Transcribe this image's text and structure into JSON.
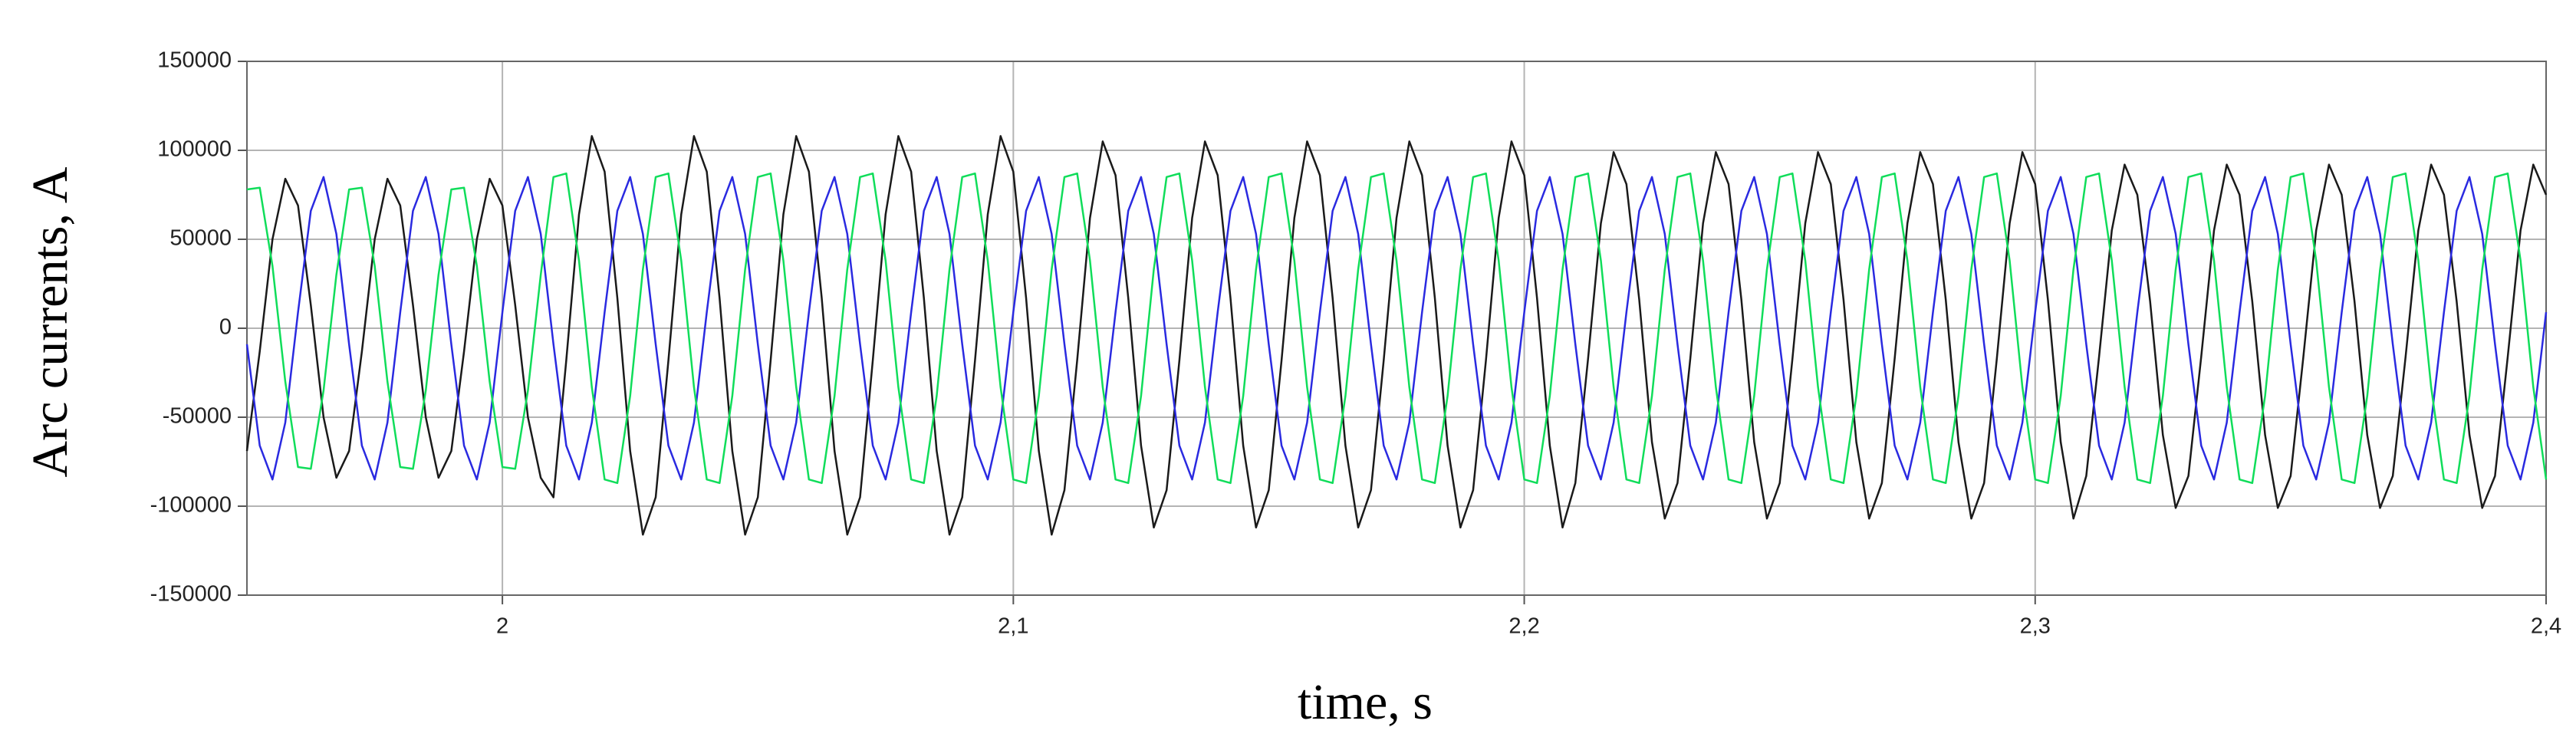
{
  "chart_data": {
    "type": "line",
    "xlabel": "time, s",
    "ylabel": "Arc currents, A",
    "xlim": [
      1.95,
      2.4
    ],
    "ylim": [
      -150000,
      150000
    ],
    "xticks": [
      2,
      {
        "value": 2.1,
        "label": "2,1"
      },
      {
        "value": 2.2,
        "label": "2,2"
      },
      {
        "value": 2.3,
        "label": "2,3"
      },
      {
        "value": 2.4,
        "label": "2,4"
      }
    ],
    "yticks": [
      -150000,
      -100000,
      -50000,
      0,
      50000,
      100000,
      150000
    ],
    "grid": true,
    "x": [
      1.95,
      1.9525,
      1.955,
      1.9575,
      1.96,
      1.9625,
      1.965,
      1.9675,
      1.97,
      1.9725,
      1.975,
      1.9775,
      1.98,
      1.9825,
      1.985,
      1.9875,
      1.99,
      1.9925,
      1.995,
      1.9975,
      2,
      2.0025,
      2.005,
      2.0075,
      2.01,
      2.0125,
      2.015,
      2.0175,
      2.02,
      2.0225,
      2.025,
      2.0275,
      2.03,
      2.0325,
      2.035,
      2.0375,
      2.04,
      2.0425,
      2.045,
      2.0475,
      2.05,
      2.0525,
      2.055,
      2.0575,
      2.06,
      2.0625,
      2.065,
      2.0675,
      2.07,
      2.0725,
      2.075,
      2.0775,
      2.08,
      2.0825,
      2.085,
      2.0875,
      2.09,
      2.0925,
      2.095,
      2.0975,
      2.1,
      2.1025,
      2.105,
      2.1075,
      2.11,
      2.1125,
      2.115,
      2.1175,
      2.12,
      2.1225,
      2.125,
      2.1275,
      2.13,
      2.1325,
      2.135,
      2.1375,
      2.14,
      2.1425,
      2.145,
      2.1475,
      2.15,
      2.1525,
      2.155,
      2.1575,
      2.16,
      2.1625,
      2.165,
      2.1675,
      2.17,
      2.1725,
      2.175,
      2.1775,
      2.18,
      2.1825,
      2.185,
      2.1875,
      2.19,
      2.1925,
      2.195,
      2.1975,
      2.2,
      2.2025,
      2.205,
      2.2075,
      2.21,
      2.2125,
      2.215,
      2.2175,
      2.22,
      2.2225,
      2.225,
      2.2275,
      2.23,
      2.2325,
      2.235,
      2.2375,
      2.24,
      2.2425,
      2.245,
      2.2475,
      2.25,
      2.2525,
      2.255,
      2.2575,
      2.26,
      2.2625,
      2.265,
      2.2675,
      2.27,
      2.2725,
      2.275,
      2.2775,
      2.28,
      2.2825,
      2.285,
      2.2875,
      2.29,
      2.2925,
      2.295,
      2.2975,
      2.3,
      2.3025,
      2.305,
      2.3075,
      2.31,
      2.3125,
      2.315,
      2.3175,
      2.32,
      2.3225,
      2.325,
      2.3275,
      2.33,
      2.3325,
      2.335,
      2.3375,
      2.34,
      2.3425,
      2.345,
      2.3475,
      2.35,
      2.3525,
      2.355,
      2.3575,
      2.36,
      2.3625,
      2.365,
      2.3675,
      2.37,
      2.3725,
      2.375,
      2.3775,
      2.38,
      2.3825,
      2.385,
      2.3875,
      2.39,
      2.3925,
      2.395,
      2.3975,
      2.4
    ],
    "series": [
      {
        "color": "#1a1a1a",
        "values": [
          -69000,
          -13000,
          50000,
          84000,
          69000,
          13000,
          -50000,
          -84000,
          -69000,
          -13000,
          50000,
          84000,
          69000,
          13000,
          -50000,
          -84000,
          -69000,
          -13000,
          50000,
          84000,
          69000,
          13000,
          -50000,
          -84000,
          -95000,
          -18000,
          64000,
          108000,
          88000,
          17000,
          -69000,
          -116000,
          -95000,
          -18000,
          64000,
          108000,
          88000,
          17000,
          -69000,
          -116000,
          -95000,
          -18000,
          64000,
          108000,
          88000,
          17000,
          -69000,
          -116000,
          -95000,
          -18000,
          64000,
          108000,
          88000,
          17000,
          -69000,
          -116000,
          -95000,
          -18000,
          64000,
          108000,
          88000,
          17000,
          -69000,
          -116000,
          -91000,
          -18000,
          62000,
          105000,
          86000,
          17000,
          -66000,
          -112000,
          -91000,
          -18000,
          62000,
          105000,
          86000,
          17000,
          -66000,
          -112000,
          -91000,
          -18000,
          62000,
          105000,
          86000,
          17000,
          -66000,
          -112000,
          -91000,
          -18000,
          62000,
          105000,
          86000,
          17000,
          -66000,
          -112000,
          -91000,
          -18000,
          62000,
          105000,
          86000,
          17000,
          -66000,
          -112000,
          -87000,
          -17000,
          59000,
          99000,
          81000,
          16000,
          -64000,
          -107000,
          -87000,
          -17000,
          59000,
          99000,
          81000,
          16000,
          -64000,
          -107000,
          -87000,
          -17000,
          59000,
          99000,
          81000,
          16000,
          -64000,
          -107000,
          -87000,
          -17000,
          59000,
          99000,
          81000,
          16000,
          -64000,
          -107000,
          -87000,
          -17000,
          59000,
          99000,
          81000,
          16000,
          -64000,
          -107000,
          -83000,
          -16000,
          55000,
          92000,
          75000,
          15000,
          -60000,
          -101000,
          -83000,
          -16000,
          55000,
          92000,
          75000,
          15000,
          -60000,
          -101000,
          -83000,
          -16000,
          55000,
          92000,
          75000,
          15000,
          -60000,
          -101000,
          -83000,
          -16000,
          55000,
          92000,
          75000,
          15000,
          -60000,
          -101000,
          -83000,
          -16000,
          55000,
          92000,
          75000
        ]
      },
      {
        "color": "#2a2ae0",
        "values": [
          -9000,
          -66000,
          -85000,
          -53000,
          9000,
          66000,
          85000,
          53000,
          -9000,
          -66000,
          -85000,
          -53000,
          9000,
          66000,
          85000,
          53000,
          -9000,
          -66000,
          -85000,
          -53000,
          9000,
          66000,
          85000,
          53000,
          -9000,
          -66000,
          -85000,
          -53000,
          9000,
          66000,
          85000,
          53000,
          -9000,
          -66000,
          -85000,
          -53000,
          9000,
          66000,
          85000,
          53000,
          -9000,
          -66000,
          -85000,
          -53000,
          9000,
          66000,
          85000,
          53000,
          -9000,
          -66000,
          -85000,
          -53000,
          9000,
          66000,
          85000,
          53000,
          -9000,
          -66000,
          -85000,
          -53000,
          9000,
          66000,
          85000,
          53000,
          -9000,
          -66000,
          -85000,
          -53000,
          9000,
          66000,
          85000,
          53000,
          -9000,
          -66000,
          -85000,
          -53000,
          9000,
          66000,
          85000,
          53000,
          -9000,
          -66000,
          -85000,
          -53000,
          9000,
          66000,
          85000,
          53000,
          -9000,
          -66000,
          -85000,
          -53000,
          9000,
          66000,
          85000,
          53000,
          -9000,
          -66000,
          -85000,
          -53000,
          9000,
          66000,
          85000,
          53000,
          -9000,
          -66000,
          -85000,
          -53000,
          9000,
          66000,
          85000,
          53000,
          -9000,
          -66000,
          -85000,
          -53000,
          9000,
          66000,
          85000,
          53000,
          -9000,
          -66000,
          -85000,
          -53000,
          9000,
          66000,
          85000,
          53000,
          -9000,
          -66000,
          -85000,
          -53000,
          9000,
          66000,
          85000,
          53000,
          -9000,
          -66000,
          -85000,
          -53000,
          9000,
          66000,
          85000,
          53000,
          -9000,
          -66000,
          -85000,
          -53000,
          9000,
          66000,
          85000,
          53000,
          -9000,
          -66000,
          -85000,
          -53000,
          9000,
          66000,
          85000,
          53000,
          -9000,
          -66000,
          -85000,
          -53000,
          9000,
          66000,
          85000,
          53000,
          -9000,
          -66000,
          -85000,
          -53000,
          9000,
          66000,
          85000,
          53000,
          -9000,
          -66000,
          -85000,
          -53000,
          9000
        ]
      },
      {
        "color": "#10dd5a",
        "values": [
          78000,
          79000,
          35000,
          -30000,
          -78000,
          -79000,
          -35000,
          30000,
          78000,
          79000,
          35000,
          -30000,
          -78000,
          -79000,
          -35000,
          30000,
          78000,
          79000,
          35000,
          -30000,
          -78000,
          -79000,
          -35000,
          30000,
          85000,
          87000,
          38000,
          -33000,
          -85000,
          -87000,
          -38000,
          33000,
          85000,
          87000,
          38000,
          -33000,
          -85000,
          -87000,
          -38000,
          33000,
          85000,
          87000,
          38000,
          -33000,
          -85000,
          -87000,
          -38000,
          33000,
          85000,
          87000,
          38000,
          -33000,
          -85000,
          -87000,
          -38000,
          33000,
          85000,
          87000,
          38000,
          -33000,
          -85000,
          -87000,
          -38000,
          33000,
          85000,
          87000,
          38000,
          -33000,
          -85000,
          -87000,
          -38000,
          33000,
          85000,
          87000,
          38000,
          -33000,
          -85000,
          -87000,
          -38000,
          33000,
          85000,
          87000,
          38000,
          -33000,
          -85000,
          -87000,
          -38000,
          33000,
          85000,
          87000,
          38000,
          -33000,
          -85000,
          -87000,
          -38000,
          33000,
          85000,
          87000,
          38000,
          -33000,
          -85000,
          -87000,
          -38000,
          33000,
          85000,
          87000,
          38000,
          -33000,
          -85000,
          -87000,
          -38000,
          33000,
          85000,
          87000,
          38000,
          -33000,
          -85000,
          -87000,
          -38000,
          33000,
          85000,
          87000,
          38000,
          -33000,
          -85000,
          -87000,
          -38000,
          33000,
          85000,
          87000,
          38000,
          -33000,
          -85000,
          -87000,
          -38000,
          33000,
          85000,
          87000,
          38000,
          -33000,
          -85000,
          -87000,
          -38000,
          33000,
          85000,
          87000,
          38000,
          -33000,
          -85000,
          -87000,
          -38000,
          33000,
          85000,
          87000,
          38000,
          -33000,
          -85000,
          -87000,
          -38000,
          33000,
          85000,
          87000,
          38000,
          -33000,
          -85000,
          -87000,
          -38000,
          33000,
          85000,
          87000,
          38000,
          -33000,
          -85000,
          -87000,
          -38000,
          33000,
          85000,
          87000,
          38000,
          -33000,
          -85000
        ]
      }
    ]
  }
}
